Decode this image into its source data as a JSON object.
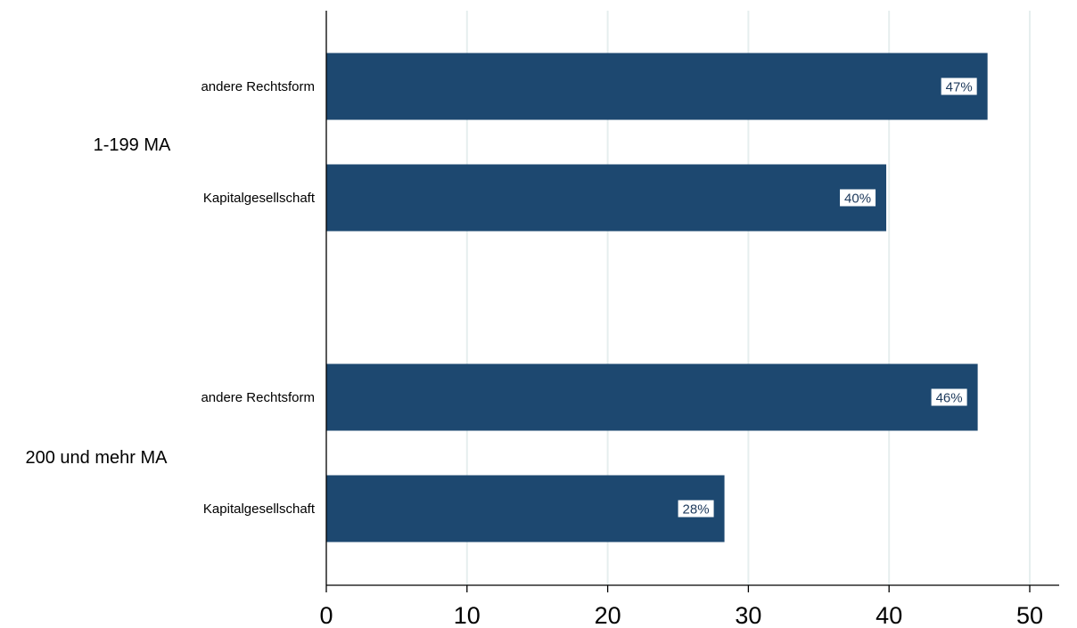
{
  "chart_data": {
    "type": "bar",
    "orientation": "horizontal",
    "groups": [
      {
        "label": "1-199 MA",
        "bars": [
          {
            "category": "andere Rechtsform",
            "value": 47.0,
            "label": "47%"
          },
          {
            "category": "Kapitalgesellschaft",
            "value": 39.8,
            "label": "40%"
          }
        ]
      },
      {
        "label": "200 und mehr MA",
        "bars": [
          {
            "category": "andere Rechtsform",
            "value": 46.3,
            "label": "46%"
          },
          {
            "category": "Kapitalgesellschaft",
            "value": 28.3,
            "label": "28%"
          }
        ]
      }
    ],
    "xlim": [
      0,
      52
    ],
    "xticks": [
      "0",
      "10",
      "20",
      "30",
      "40",
      "50"
    ],
    "title": "",
    "xlabel": "",
    "ylabel": "",
    "grid": true,
    "bar_color": "#1d4870",
    "grid_color": "#e6eeee"
  }
}
